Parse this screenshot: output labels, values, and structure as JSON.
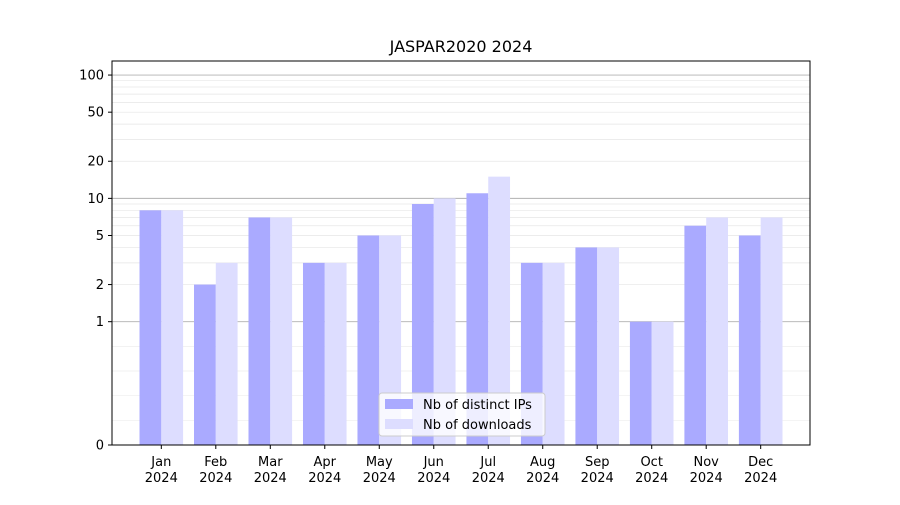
{
  "chart_data": {
    "type": "bar",
    "title": "JASPAR2020 2024",
    "xlabel": "",
    "ylabel": "",
    "yscale": "symlog",
    "ylim": [
      0,
      130
    ],
    "yticks": [
      0,
      1,
      2,
      5,
      10,
      20,
      50,
      100
    ],
    "categories": [
      [
        "Jan",
        "2024"
      ],
      [
        "Feb",
        "2024"
      ],
      [
        "Mar",
        "2024"
      ],
      [
        "Apr",
        "2024"
      ],
      [
        "May",
        "2024"
      ],
      [
        "Jun",
        "2024"
      ],
      [
        "Jul",
        "2024"
      ],
      [
        "Aug",
        "2024"
      ],
      [
        "Sep",
        "2024"
      ],
      [
        "Oct",
        "2024"
      ],
      [
        "Nov",
        "2024"
      ],
      [
        "Dec",
        "2024"
      ]
    ],
    "series": [
      {
        "name": "Nb of distinct IPs",
        "color": "#aaaaff",
        "values": [
          8,
          2,
          7,
          3,
          5,
          9,
          11,
          3,
          4,
          1,
          6,
          5
        ]
      },
      {
        "name": "Nb of downloads",
        "color": "#ddddff",
        "values": [
          8,
          3,
          7,
          3,
          5,
          10,
          15,
          3,
          4,
          1,
          7,
          7
        ]
      }
    ],
    "grid": true,
    "legend_position": "bottom-center"
  }
}
